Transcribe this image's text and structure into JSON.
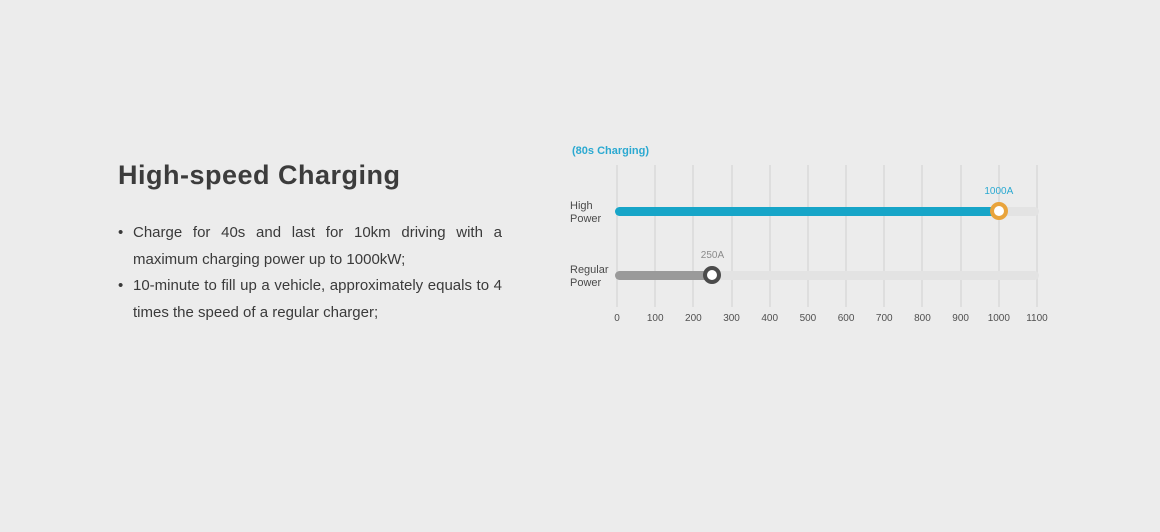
{
  "page": {
    "background": "#ececec"
  },
  "left": {
    "title": "High-speed Charging",
    "bullets": [
      "Charge for 40s and last for 10km driving with a maximum charging power up to 1000kW;",
      "10-minute to fill up a vehicle, approximately equals to 4 times the speed of a regular charger;"
    ]
  },
  "chart_data": {
    "type": "bar",
    "orientation": "horizontal",
    "title": "(80s Charging)",
    "categories": [
      "High Power",
      "Regular Power"
    ],
    "values": [
      1000,
      250
    ],
    "value_labels": [
      "1000A",
      "250A"
    ],
    "unit": "A",
    "xlim": [
      0,
      1100
    ],
    "x_ticks": [
      0,
      100,
      200,
      300,
      400,
      500,
      600,
      700,
      800,
      900,
      1000,
      1100
    ],
    "grid": true,
    "legend": "none",
    "colors": {
      "bar_fills": [
        "#17a5c8",
        "#9a9a9a"
      ],
      "marker_rings": [
        "#e9a43c",
        "#4b4b4b"
      ],
      "value_label_colors": [
        "#2ba9d1",
        "#8b8b8b"
      ],
      "track": "#e3e3e3",
      "gridline": "#dedede",
      "subtitle": "#2ba9d1",
      "axis_text": "#505050",
      "category_text": "#4a4a4a"
    }
  }
}
